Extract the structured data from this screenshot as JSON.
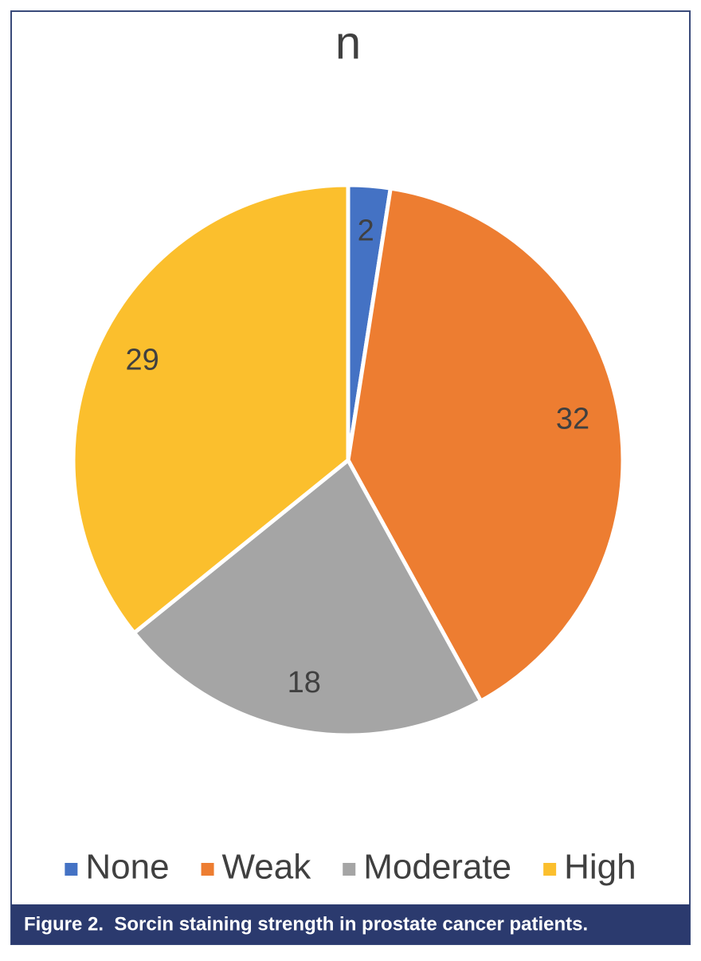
{
  "chart_data": {
    "type": "pie",
    "title": "n",
    "categories": [
      "None",
      "Weak",
      "Moderate",
      "High"
    ],
    "values": [
      2,
      32,
      18,
      29
    ],
    "colors": [
      "#4472c4",
      "#ed7d31",
      "#a5a5a5",
      "#fbbf2d"
    ],
    "legend": "bottom"
  },
  "caption": "Figure 2.  Sorcin staining strength in prostate cancer patients."
}
